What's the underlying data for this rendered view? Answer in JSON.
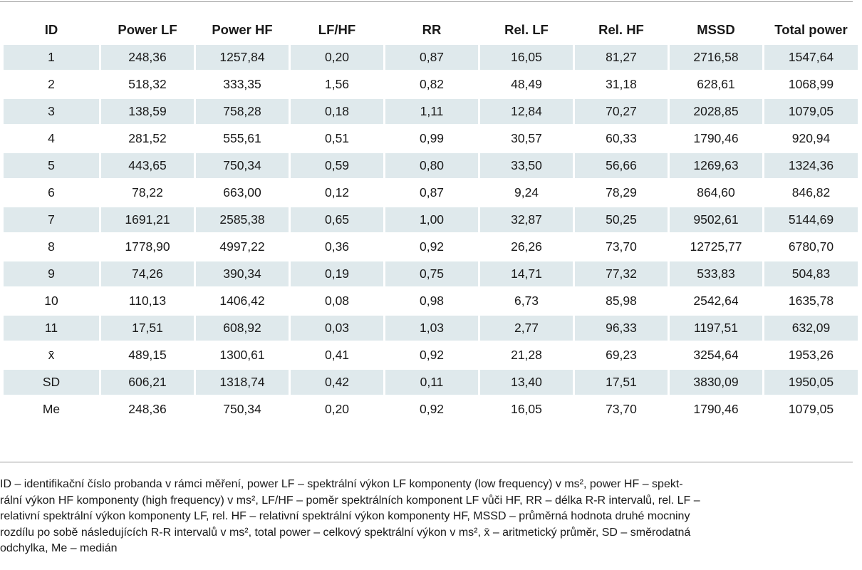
{
  "table": {
    "headers": [
      "ID",
      "Power LF",
      "Power HF",
      "LF/HF",
      "RR",
      "Rel. LF",
      "Rel. HF",
      "MSSD",
      "Total power"
    ],
    "rows": [
      [
        "1",
        "248,36",
        "1257,84",
        "0,20",
        "0,87",
        "16,05",
        "81,27",
        "2716,58",
        "1547,64"
      ],
      [
        "2",
        "518,32",
        "333,35",
        "1,56",
        "0,82",
        "48,49",
        "31,18",
        "628,61",
        "1068,99"
      ],
      [
        "3",
        "138,59",
        "758,28",
        "0,18",
        "1,11",
        "12,84",
        "70,27",
        "2028,85",
        "1079,05"
      ],
      [
        "4",
        "281,52",
        "555,61",
        "0,51",
        "0,99",
        "30,57",
        "60,33",
        "1790,46",
        "920,94"
      ],
      [
        "5",
        "443,65",
        "750,34",
        "0,59",
        "0,80",
        "33,50",
        "56,66",
        "1269,63",
        "1324,36"
      ],
      [
        "6",
        "78,22",
        "663,00",
        "0,12",
        "0,87",
        "9,24",
        "78,29",
        "864,60",
        "846,82"
      ],
      [
        "7",
        "1691,21",
        "2585,38",
        "0,65",
        "1,00",
        "32,87",
        "50,25",
        "9502,61",
        "5144,69"
      ],
      [
        "8",
        "1778,90",
        "4997,22",
        "0,36",
        "0,92",
        "26,26",
        "73,70",
        "12725,77",
        "6780,70"
      ],
      [
        "9",
        "74,26",
        "390,34",
        "0,19",
        "0,75",
        "14,71",
        "77,32",
        "533,83",
        "504,83"
      ],
      [
        "10",
        "110,13",
        "1406,42",
        "0,08",
        "0,98",
        "6,73",
        "85,98",
        "2542,64",
        "1635,78"
      ],
      [
        "11",
        "17,51",
        "608,92",
        "0,03",
        "1,03",
        "2,77",
        "96,33",
        "1197,51",
        "632,09"
      ],
      [
        "x̄",
        "489,15",
        "1300,61",
        "0,41",
        "0,92",
        "21,28",
        "69,23",
        "3254,64",
        "1953,26"
      ],
      [
        "SD",
        "606,21",
        "1318,74",
        "0,42",
        "0,11",
        "13,40",
        "17,51",
        "3830,09",
        "1950,05"
      ],
      [
        "Me",
        "248,36",
        "750,34",
        "0,20",
        "0,92",
        "16,05",
        "73,70",
        "1790,46",
        "1079,05"
      ]
    ],
    "shade_color": "#dfe9ec"
  },
  "footnote": {
    "lines": [
      "ID – identifikační číslo probanda v rámci měření, power LF – spektrální výkon LF komponenty (low frequency) v ms², power HF – spekt-",
      "rální výkon HF komponenty (high frequency) v ms², LF/HF – poměr spektrálních komponent LF vůči HF, RR – délka R-R intervalů, rel. LF –",
      "relativní spektrální výkon komponenty LF, rel. HF – relativní spektrální výkon komponenty HF, MSSD – průměrná hodnota druhé mocniny",
      "rozdílu po sobě následujících R-R intervalů v ms², total power – celkový spektrální výkon v ms², x̄ – aritmetický průměr, SD – směrodatná",
      "odchylka, Me – medián"
    ]
  }
}
